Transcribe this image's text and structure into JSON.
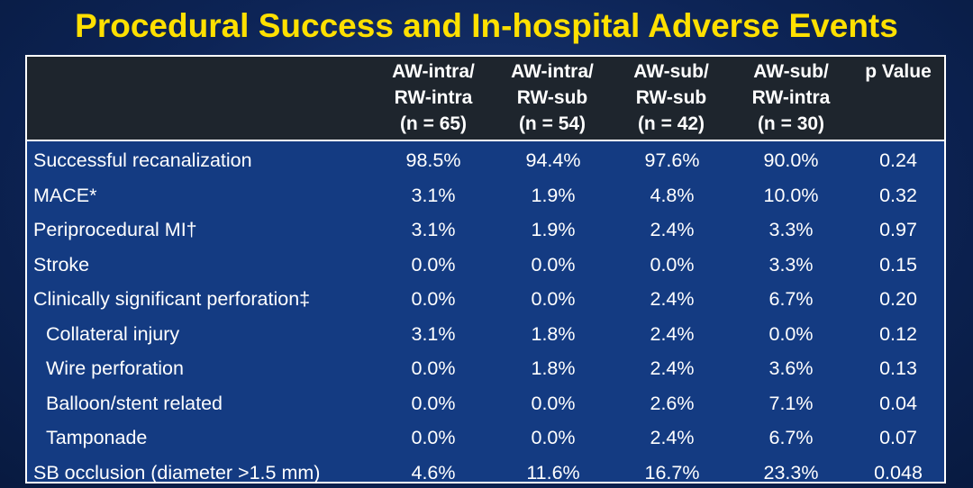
{
  "title": "Procedural Success and In-hospital Adverse Events",
  "header": {
    "columns": [
      {
        "line1": "AW-intra/",
        "line2": "RW-intra",
        "line3": "(n = 65)"
      },
      {
        "line1": "AW-intra/",
        "line2": "RW-sub",
        "line3": "(n = 54)"
      },
      {
        "line1": "AW-sub/",
        "line2": "RW-sub",
        "line3": "(n = 42)"
      },
      {
        "line1": "AW-sub/",
        "line2": "RW-intra",
        "line3": "(n = 30)"
      },
      {
        "line1": "p Value",
        "line2": "",
        "line3": ""
      }
    ]
  },
  "rows": [
    {
      "label": "Successful recanalization",
      "indent": false,
      "values": [
        "98.5%",
        "94.4%",
        "97.6%",
        "90.0%",
        "0.24"
      ]
    },
    {
      "label": "MACE*",
      "indent": false,
      "values": [
        "3.1%",
        "1.9%",
        "4.8%",
        "10.0%",
        "0.32"
      ]
    },
    {
      "label": "Periprocedural MI†",
      "indent": false,
      "values": [
        "3.1%",
        "1.9%",
        "2.4%",
        "3.3%",
        "0.97"
      ]
    },
    {
      "label": "Stroke",
      "indent": false,
      "values": [
        "0.0%",
        "0.0%",
        "0.0%",
        "3.3%",
        "0.15"
      ]
    },
    {
      "label": "Clinically significant perforation‡",
      "indent": false,
      "values": [
        "0.0%",
        "0.0%",
        "2.4%",
        "6.7%",
        "0.20"
      ]
    },
    {
      "label": "Collateral injury",
      "indent": true,
      "values": [
        "3.1%",
        "1.8%",
        "2.4%",
        "0.0%",
        "0.12"
      ]
    },
    {
      "label": "Wire perforation",
      "indent": true,
      "values": [
        "0.0%",
        "1.8%",
        "2.4%",
        "3.6%",
        "0.13"
      ]
    },
    {
      "label": "Balloon/stent related",
      "indent": true,
      "values": [
        "0.0%",
        "0.0%",
        "2.6%",
        "7.1%",
        "0.04"
      ]
    },
    {
      "label": "Tamponade",
      "indent": true,
      "values": [
        "0.0%",
        "0.0%",
        "2.4%",
        "6.7%",
        "0.07"
      ]
    },
    {
      "label": "SB occlusion (diameter >1.5 mm)",
      "indent": false,
      "values": [
        "4.6%",
        "11.6%",
        "16.7%",
        "23.3%",
        "0.048"
      ]
    }
  ],
  "colors": {
    "title": "#ffe000",
    "table_body": "#143b82",
    "table_header": "#1e252d",
    "text": "#ffffff"
  }
}
